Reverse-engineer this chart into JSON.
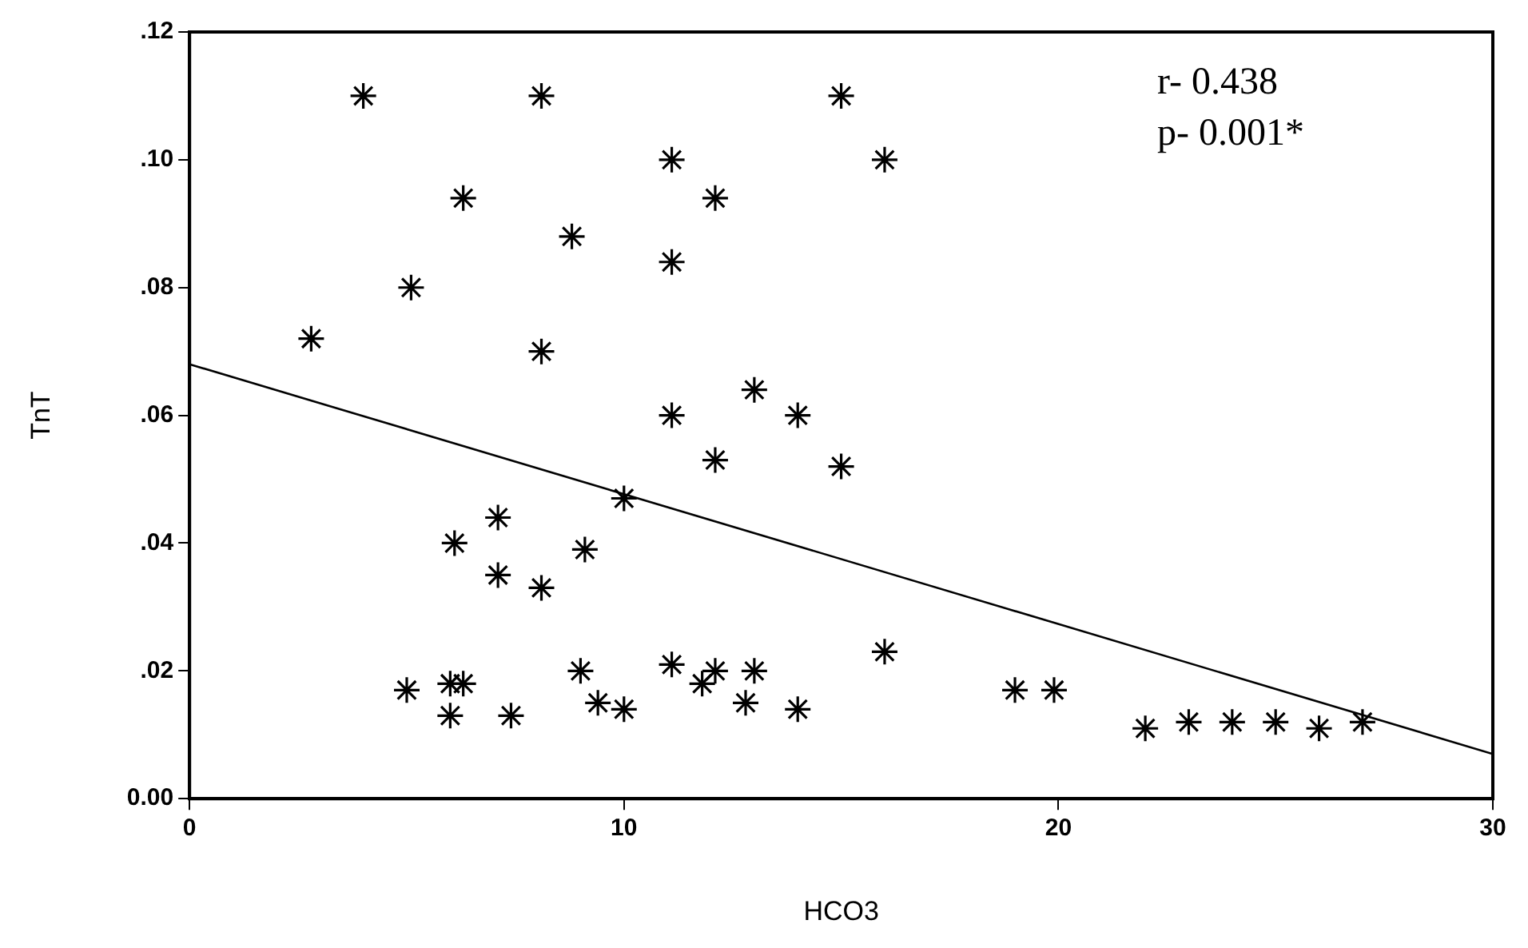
{
  "chart_data": {
    "type": "scatter",
    "xlabel": "HCO3",
    "ylabel": "TnT",
    "marker": "cross",
    "grid": false,
    "annotations": [
      "r- 0.438",
      "p- 0.001*"
    ],
    "xlim": [
      0,
      30
    ],
    "xticks": [
      0,
      10,
      20,
      30
    ],
    "ylim": [
      0,
      0.12
    ],
    "yticks": [
      {
        "value": 0,
        "label": "0.00"
      },
      {
        "value": 0.02,
        "label": ".02"
      },
      {
        "value": 0.04,
        "label": ".04"
      },
      {
        "value": 0.06,
        "label": ".06"
      },
      {
        "value": 0.08,
        "label": ".08"
      },
      {
        "value": 0.1,
        "label": ".10"
      },
      {
        "value": 0.12,
        "label": ".12"
      }
    ],
    "series": [
      {
        "color": "#000000",
        "x": [
          4.0,
          8.1,
          15.0,
          6.3,
          5.1,
          2.8,
          8.1,
          8.8,
          11.1,
          11.1,
          12.1,
          16.0,
          11.1,
          12.1,
          13.0,
          14.0,
          15.0,
          10.0,
          6.1,
          7.1,
          7.1,
          8.1,
          9.1,
          5.0,
          6.0,
          6.3,
          6.0,
          7.4,
          9.0,
          9.4,
          10.0,
          11.1,
          11.8,
          12.1,
          12.8,
          13.0,
          14.0,
          16.0,
          19.0,
          19.9,
          22.0,
          23.0,
          24.0,
          25.0,
          26.0,
          27.0
        ],
        "values": [
          0.11,
          0.11,
          0.11,
          0.094,
          0.08,
          0.072,
          0.07,
          0.088,
          0.1,
          0.084,
          0.094,
          0.1,
          0.06,
          0.053,
          0.064,
          0.06,
          0.052,
          0.047,
          0.04,
          0.044,
          0.035,
          0.033,
          0.039,
          0.017,
          0.018,
          0.018,
          0.013,
          0.013,
          0.02,
          0.015,
          0.014,
          0.021,
          0.018,
          0.02,
          0.015,
          0.02,
          0.014,
          0.023,
          0.017,
          0.017,
          0.011,
          0.012,
          0.012,
          0.012,
          0.011,
          0.012
        ]
      },
      {
        "type": "line",
        "marker": "none",
        "color": "#000000",
        "x": [
          0,
          30
        ],
        "values": [
          0.068,
          0.007
        ]
      }
    ]
  }
}
